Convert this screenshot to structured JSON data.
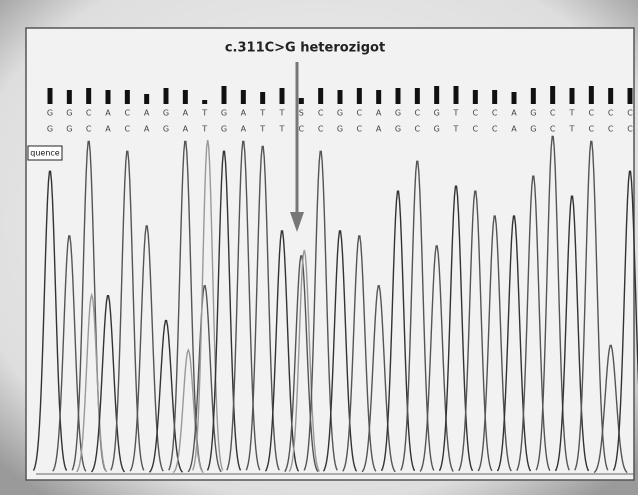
{
  "annotation": "c.311C>G heterozigot",
  "track_label": "quence",
  "base_calls": {
    "top": [
      "G",
      "G",
      "C",
      "A",
      "C",
      "A",
      "G",
      "A",
      "T",
      "G",
      "A",
      "T",
      "T",
      "S",
      "C",
      "G",
      "C",
      "A",
      "G",
      "C",
      "G",
      "T",
      "C",
      "C",
      "A",
      "G",
      "C",
      "T",
      "C",
      "C",
      "C"
    ],
    "bottom": [
      "G",
      "G",
      "C",
      "A",
      "C",
      "A",
      "G",
      "A",
      "T",
      "G",
      "A",
      "T",
      "T",
      "C",
      "C",
      "G",
      "C",
      "A",
      "G",
      "C",
      "G",
      "T",
      "C",
      "C",
      "A",
      "G",
      "C",
      "T",
      "C",
      "C",
      "C"
    ]
  }
}
